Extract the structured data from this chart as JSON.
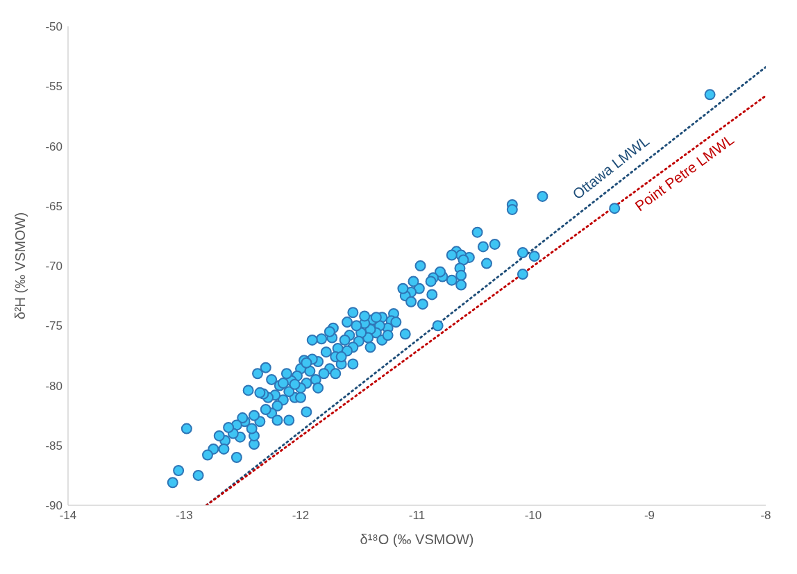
{
  "chart_data": {
    "type": "scatter",
    "xlabel": "δ¹⁸O (‰ VSMOW)",
    "ylabel": "δ²H (‰ VSMOW)",
    "xlim": [
      -14,
      -8
    ],
    "xticks": [
      -14,
      -13,
      -12,
      -11,
      -10,
      -9,
      -8
    ],
    "ylim": [
      -90,
      -50
    ],
    "yticks": [
      -90,
      -85,
      -80,
      -75,
      -70,
      -65,
      -60,
      -55,
      -50
    ],
    "marker": "circle",
    "series": [
      {
        "color": "#3ec4f4",
        "x": [
          -8.48,
          -9.3,
          -9.92,
          -10.18,
          -10.18,
          -10.09,
          -9.99,
          -10.09,
          -10.33,
          -10.43,
          -10.48,
          -10.4,
          -10.55,
          -10.66,
          -10.62,
          -10.6,
          -10.7,
          -10.63,
          -10.62,
          -10.62,
          -10.7,
          -10.78,
          -10.8,
          -10.86,
          -10.88,
          -10.87,
          -10.97,
          -10.98,
          -11.03,
          -11.05,
          -11.1,
          -11.12,
          -11.05,
          -10.95,
          -11.1,
          -10.82,
          -11.2,
          -11.22,
          -11.25,
          -11.3,
          -11.32,
          -11.35,
          -11.38,
          -11.4,
          -11.42,
          -11.45,
          -11.48,
          -11.5,
          -11.52,
          -11.55,
          -11.55,
          -11.58,
          -11.6,
          -11.62,
          -11.65,
          -11.68,
          -11.7,
          -11.72,
          -11.73,
          -11.75,
          -11.78,
          -11.8,
          -11.82,
          -11.85,
          -11.87,
          -11.9,
          -11.92,
          -11.95,
          -11.97,
          -12.0,
          -12.0,
          -12.03,
          -12.05,
          -12.08,
          -12.1,
          -12.12,
          -12.15,
          -12.18,
          -12.2,
          -12.22,
          -12.25,
          -12.28,
          -12.3,
          -12.3,
          -12.32,
          -12.35,
          -12.37,
          -12.4,
          -12.4,
          -12.4,
          -12.42,
          -12.45,
          -12.48,
          -12.5,
          -12.52,
          -12.55,
          -12.55,
          -12.58,
          -12.62,
          -12.65,
          -12.66,
          -12.7,
          -12.75,
          -12.8,
          -12.98,
          -13.05,
          -13.1,
          -12.88,
          -11.95,
          -12.1,
          -12.2,
          -12.0,
          -11.85,
          -11.7,
          -11.55,
          -11.4,
          -11.3,
          -11.25,
          -11.18,
          -11.6,
          -11.75,
          -11.9,
          -12.15,
          -12.25,
          -12.35,
          -11.45,
          -11.35,
          -11.65,
          -12.05,
          -11.95
        ],
        "values": [
          -55.7,
          -65.2,
          -64.2,
          -64.9,
          -65.3,
          -68.9,
          -69.2,
          -70.7,
          -68.2,
          -68.4,
          -67.2,
          -69.8,
          -69.3,
          -68.8,
          -69.1,
          -69.5,
          -69.1,
          -70.2,
          -70.8,
          -71.6,
          -71.2,
          -70.9,
          -70.5,
          -71.0,
          -71.3,
          -72.4,
          -70.0,
          -71.9,
          -71.3,
          -72.2,
          -72.5,
          -71.9,
          -73.0,
          -73.2,
          -75.7,
          -75.0,
          -74.0,
          -74.6,
          -75.2,
          -74.3,
          -75.0,
          -75.6,
          -74.5,
          -75.3,
          -76.0,
          -74.8,
          -75.6,
          -76.3,
          -75.0,
          -73.9,
          -76.8,
          -75.8,
          -77.1,
          -76.2,
          -78.2,
          -76.9,
          -77.6,
          -75.2,
          -76.0,
          -78.6,
          -77.2,
          -79.0,
          -76.1,
          -78.0,
          -79.5,
          -77.8,
          -78.8,
          -79.8,
          -77.9,
          -78.6,
          -80.2,
          -79.2,
          -81.0,
          -79.6,
          -80.5,
          -79.0,
          -81.2,
          -80.0,
          -81.7,
          -80.8,
          -82.3,
          -81.0,
          -78.5,
          -82.0,
          -80.7,
          -83.0,
          -79.0,
          -82.5,
          -84.9,
          -84.2,
          -83.6,
          -80.4,
          -83.0,
          -82.7,
          -84.3,
          -83.3,
          -86.0,
          -84.0,
          -83.5,
          -84.6,
          -85.3,
          -84.2,
          -85.3,
          -85.8,
          -83.6,
          -87.1,
          -88.1,
          -87.5,
          -82.2,
          -82.9,
          -82.9,
          -81.0,
          -80.2,
          -79.0,
          -78.2,
          -76.8,
          -76.2,
          -75.8,
          -74.7,
          -74.7,
          -75.5,
          -76.2,
          -79.8,
          -79.5,
          -80.6,
          -74.2,
          -74.3,
          -77.6,
          -79.9,
          -78.1
        ]
      },
      {
        "type": "line",
        "name": "Ottawa LMWL",
        "color": "#1f4e79",
        "line_style": "dotted",
        "marker": "none",
        "x": [
          -12.81,
          -8
        ],
        "values": [
          -90,
          -53.4
        ]
      },
      {
        "type": "line",
        "name": "Point Petre LMWL",
        "color": "#c00000",
        "line_style": "dotted",
        "marker": "none",
        "x": [
          -12.81,
          -8
        ],
        "values": [
          -90,
          -55.8
        ]
      }
    ]
  }
}
